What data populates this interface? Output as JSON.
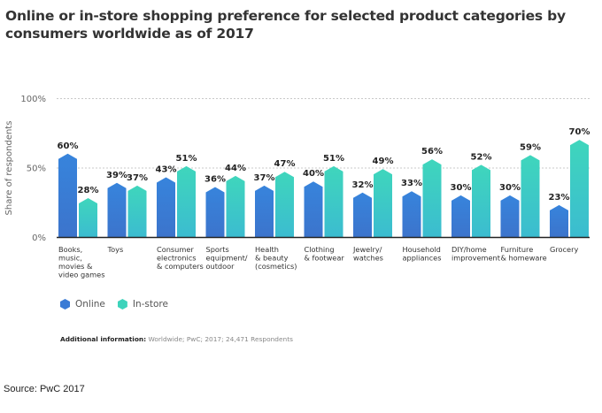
{
  "chart_data": {
    "type": "bar",
    "title": "Online or in-store shopping preference for selected product categories by consumers worldwide as of 2017",
    "xlabel": "",
    "ylabel": "Share of respondents",
    "ylim": [
      0,
      100
    ],
    "yticks": [
      "0%",
      "50%",
      "100%"
    ],
    "ytick_values": [
      0,
      50,
      100
    ],
    "grid": true,
    "legend_position": "bottom-left",
    "categories": [
      [
        "Books,",
        "music,",
        "movies &",
        "video games"
      ],
      [
        "Toys"
      ],
      [
        "Consumer",
        "electronics",
        "& computers"
      ],
      [
        "Sports",
        "equipment/",
        "outdoor"
      ],
      [
        "Health",
        "& beauty",
        "(cosmetics)"
      ],
      [
        "Clothing",
        "& footwear"
      ],
      [
        "Jewelry/",
        "watches"
      ],
      [
        "Household",
        "appliances"
      ],
      [
        "DIY/home",
        "improvement"
      ],
      [
        "Furniture",
        "& homeware"
      ],
      [
        "Grocery"
      ]
    ],
    "series": [
      {
        "name": "Online",
        "color": "#3a7bd5",
        "values": [
          60,
          39,
          43,
          36,
          37,
          40,
          32,
          33,
          30,
          30,
          23
        ]
      },
      {
        "name": "In-store",
        "color": "#3dd3bb",
        "values": [
          28,
          37,
          51,
          44,
          47,
          51,
          49,
          56,
          52,
          59,
          70
        ]
      }
    ],
    "value_suffix": "%"
  },
  "legend": {
    "items": [
      {
        "label": "Online",
        "color": "#3a7bd5"
      },
      {
        "label": "In-store",
        "color": "#3dd3bb"
      }
    ]
  },
  "additional_info": {
    "label": "Additional information:",
    "text": " Worldwide; PwC; 2017; 24,471 Respondents"
  },
  "source": "Source: PwC 2017"
}
